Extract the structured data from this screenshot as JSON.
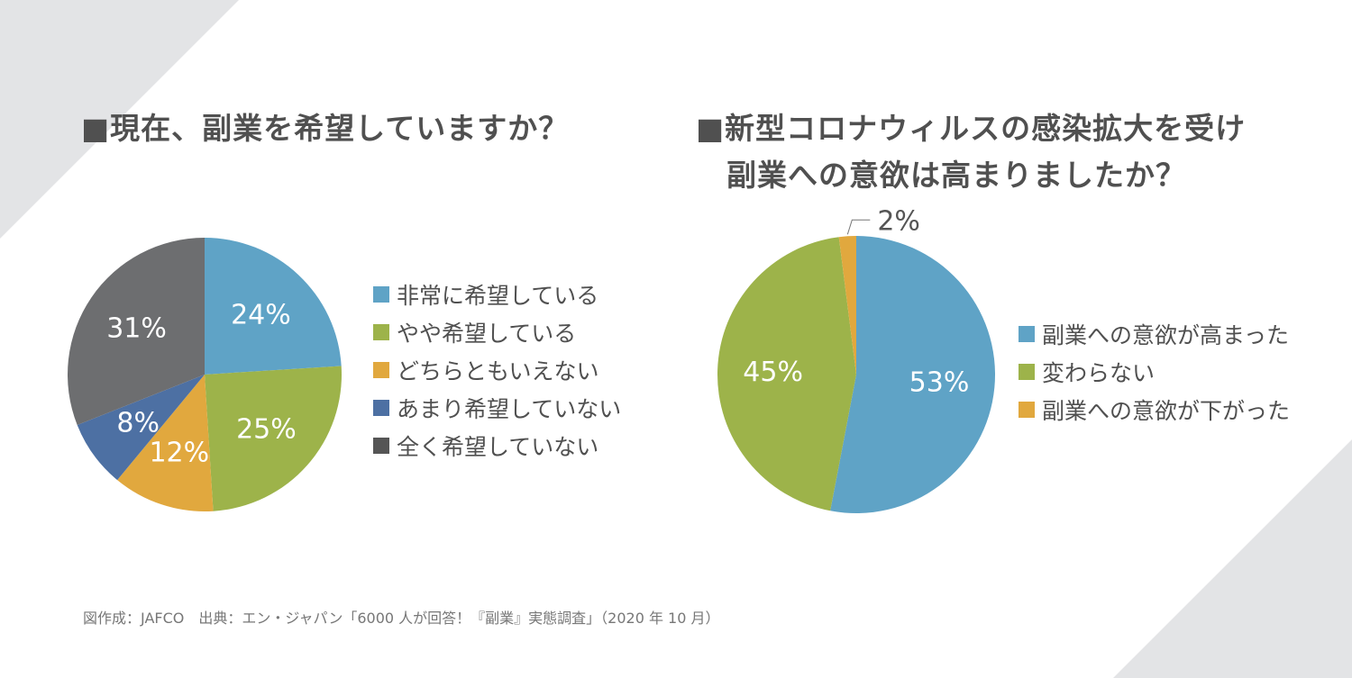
{
  "chart_data": [
    {
      "type": "pie",
      "title": "■現在、副業を希望していますか？",
      "categories": [
        "非常に希望している",
        "やや希望している",
        "どちらともいえない",
        "あまり希望していない",
        "全く希望していない"
      ],
      "values": [
        24,
        25,
        12,
        8,
        31
      ],
      "labels": [
        "24%",
        "25%",
        "12%",
        "8%",
        "31%"
      ],
      "colors": [
        "#5fa3c6",
        "#9db34a",
        "#e1a83e",
        "#4d70a3",
        "#6d6e70"
      ],
      "legend_position": "right"
    },
    {
      "type": "pie",
      "title": "■新型コロナウィルスの感染拡大を受け",
      "title_line2": "副業への意欲は高まりましたか？",
      "categories": [
        "副業への意欲が高まった",
        "変わらない",
        "副業への意欲が下がった"
      ],
      "values": [
        53,
        45,
        2
      ],
      "labels": [
        "53%",
        "45%",
        "2%"
      ],
      "colors": [
        "#5fa3c6",
        "#9db34a",
        "#e1a83e"
      ],
      "legend_position": "right"
    }
  ],
  "footer": "図作成：JAFCO　出典：エン・ジャパン「6000 人が回答！『副業』実態調査」（2020 年 10 月）"
}
